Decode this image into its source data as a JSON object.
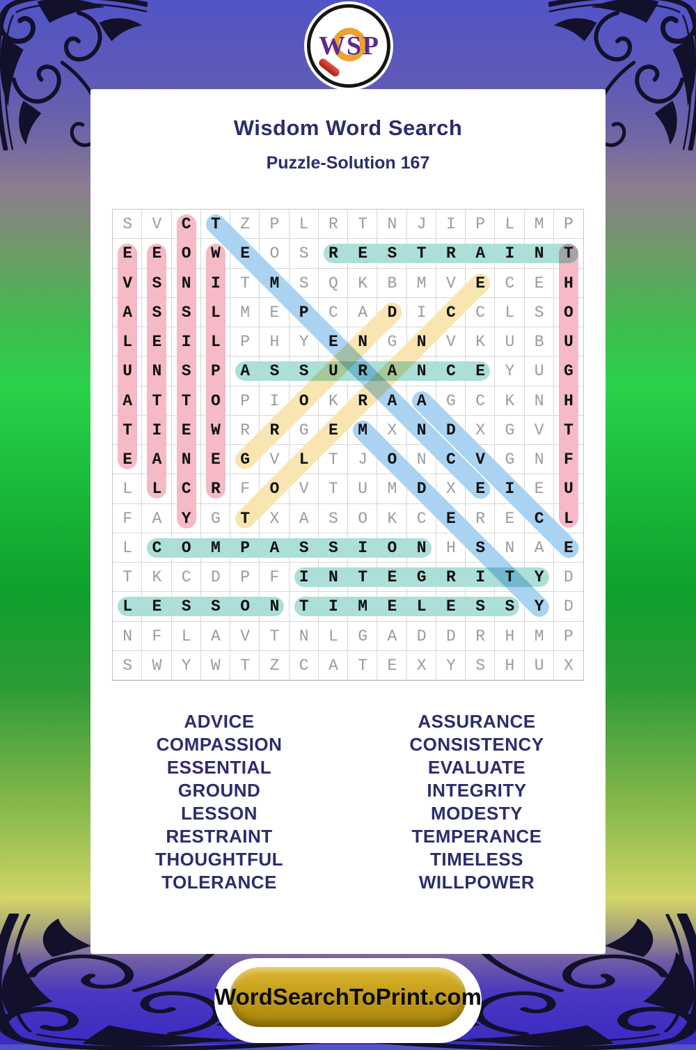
{
  "page": {
    "title": "Wisdom Word Search",
    "subtitle": "Puzzle-Solution 167"
  },
  "logo": {
    "letter_w": "W",
    "letter_s": "S",
    "letter_p": "P"
  },
  "grid": {
    "cols": 16,
    "rows_count": 16,
    "rows": [
      "SVCTZPLRTNJIPLMP",
      "EEOWEOSRESTRAINT",
      "VSNITMSQKBMVECEH",
      "ASSLMEPCADICCLSO",
      "LEILPHYENGNVKUBU",
      "UNSPASSURANCEYUG",
      "ATTOPIOKRAAGCKNH",
      "TIEWRRGEMXNDXGVT",
      "EANEGVLTJONCVGNF",
      "LLCRFOVTUMDXEIEU",
      "FAYGTXASOKCERECL",
      "LCOMPASSIONHSNAE",
      "TKCDPFINTEGRITYD",
      "LESSONTIMELESSYD",
      "NFLAVTNLGADDRHMP",
      "SWYWTZCATEXYSHUX"
    ]
  },
  "placements": [
    {
      "word": "EVALUATE",
      "row": 2,
      "col": 1,
      "dr": 1,
      "dc": 0,
      "color": "pink"
    },
    {
      "word": "ESSENTIAL",
      "row": 2,
      "col": 2,
      "dr": 1,
      "dc": 0,
      "color": "pink"
    },
    {
      "word": "CONSISTENCY",
      "row": 1,
      "col": 3,
      "dr": 1,
      "dc": 0,
      "color": "pink"
    },
    {
      "word": "WILLPOWER",
      "row": 2,
      "col": 4,
      "dr": 1,
      "dc": 0,
      "color": "pink"
    },
    {
      "word": "THOUGHTFUL",
      "row": 2,
      "col": 16,
      "dr": 1,
      "dc": 0,
      "color": "pink"
    },
    {
      "word": "GROUND",
      "row": 9,
      "col": 5,
      "dr": -1,
      "dc": 1,
      "color": "yellow"
    },
    {
      "word": "TOLERANCE",
      "row": 11,
      "col": 5,
      "dr": -1,
      "dc": 1,
      "color": "yellow"
    },
    {
      "word": "TEMPERANCE",
      "row": 1,
      "col": 4,
      "dr": 1,
      "dc": 1,
      "color": "blue"
    },
    {
      "word": "MODESTY",
      "row": 8,
      "col": 9,
      "dr": 1,
      "dc": 1,
      "color": "blue"
    },
    {
      "word": "ADVICE",
      "row": 7,
      "col": 11,
      "dr": 1,
      "dc": 1,
      "color": "blue"
    },
    {
      "word": "RESTRAINT",
      "row": 2,
      "col": 8,
      "dr": 0,
      "dc": 1,
      "color": "teal"
    },
    {
      "word": "ASSURANCE",
      "row": 6,
      "col": 5,
      "dr": 0,
      "dc": 1,
      "color": "teal"
    },
    {
      "word": "COMPASSION",
      "row": 12,
      "col": 2,
      "dr": 0,
      "dc": 1,
      "color": "teal"
    },
    {
      "word": "INTEGRITY",
      "row": 13,
      "col": 7,
      "dr": 0,
      "dc": 1,
      "color": "teal"
    },
    {
      "word": "LESSON",
      "row": 14,
      "col": 1,
      "dr": 0,
      "dc": 1,
      "color": "teal"
    },
    {
      "word": "TIMELESS",
      "row": 14,
      "col": 7,
      "dr": 0,
      "dc": 1,
      "color": "teal"
    }
  ],
  "words": {
    "left": [
      "ADVICE",
      "COMPASSION",
      "ESSENTIAL",
      "GROUND",
      "LESSON",
      "RESTRAINT",
      "THOUGHTFUL",
      "TOLERANCE"
    ],
    "right": [
      "ASSURANCE",
      "CONSISTENCY",
      "EVALUATE",
      "INTEGRITY",
      "MODESTY",
      "TEMPERANCE",
      "TIMELESS",
      "WILLPOWER"
    ]
  },
  "footer": {
    "button_label": "WordSearchToPrint.com"
  },
  "colors": {
    "pink": "#f5bac6",
    "teal": "#abdfd8",
    "blue": "#a9d3f1",
    "yellow": "#f8e5b2",
    "navy": "#2c2c6e"
  }
}
